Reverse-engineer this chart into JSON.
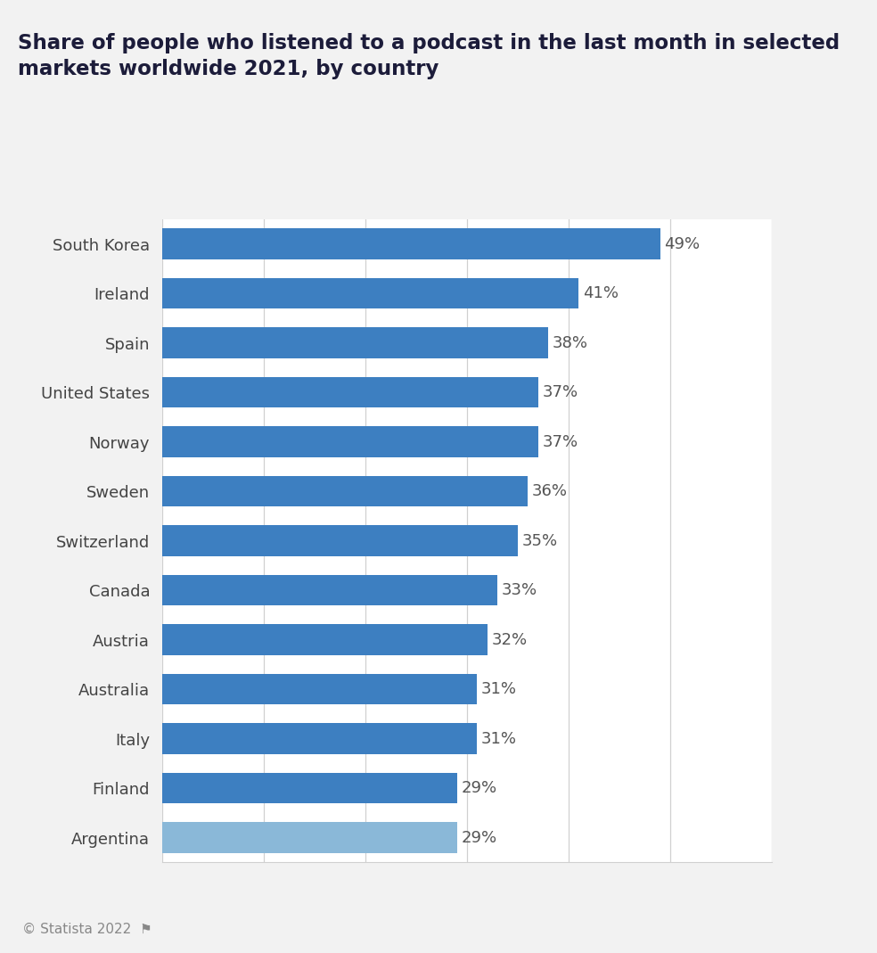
{
  "title_line1": "Share of people who listened to a podcast in the last month in selected",
  "title_line2": "markets worldwide 2021, by country",
  "title_color": "#1c1c3a",
  "title_fontsize": 16.5,
  "categories": [
    "South Korea",
    "Ireland",
    "Spain",
    "United States",
    "Norway",
    "Sweden",
    "Switzerland",
    "Canada",
    "Austria",
    "Australia",
    "Italy",
    "Finland",
    "Argentina"
  ],
  "values": [
    49,
    41,
    38,
    37,
    37,
    36,
    35,
    33,
    32,
    31,
    31,
    29,
    29
  ],
  "bar_color": "#3d7fc1",
  "argentina_color": "#8ab8d8",
  "bar_height": 0.62,
  "xlim": [
    0,
    60
  ],
  "xtick_interval": 10,
  "grid_color": "#d0d0d0",
  "background_color": "#f2f2f2",
  "plot_bg_color": "#ffffff",
  "label_color": "#444444",
  "value_label_color": "#555555",
  "value_label_fontsize": 13,
  "category_fontsize": 13,
  "footer_text": "© Statista 2022  ⚑",
  "footer_color": "#888888",
  "footer_fontsize": 11
}
